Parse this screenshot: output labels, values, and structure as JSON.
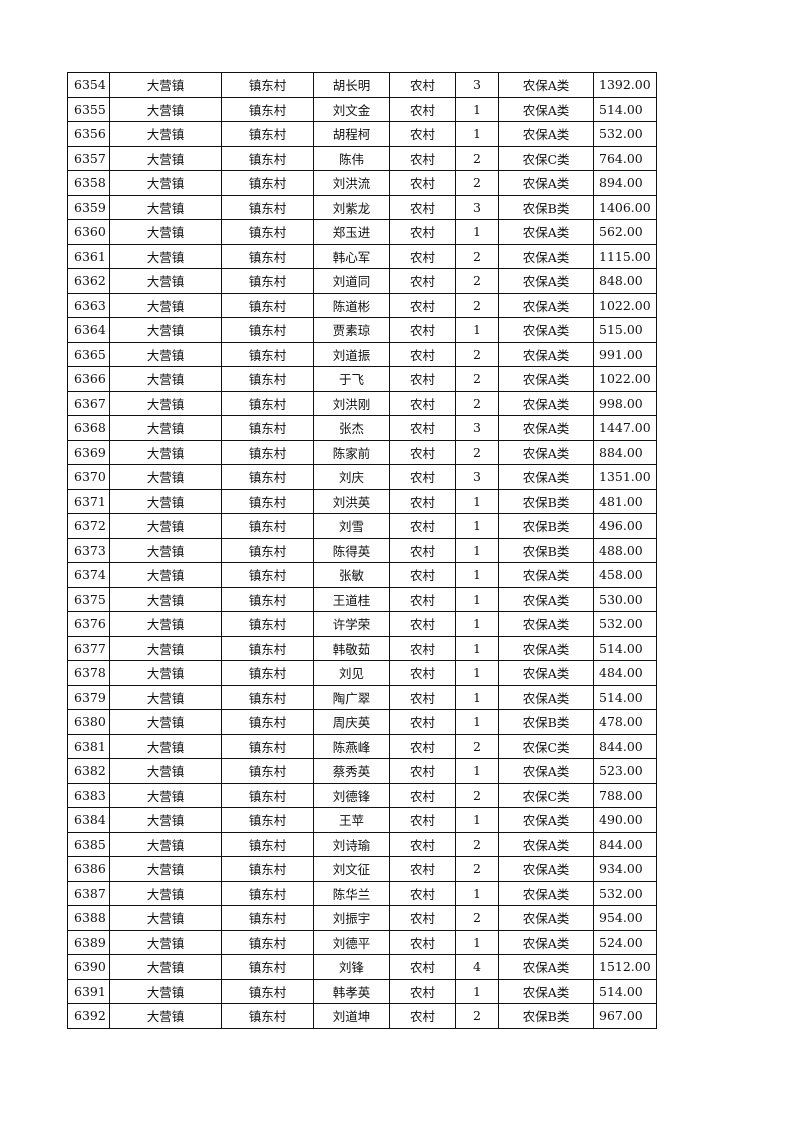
{
  "rows": [
    [
      "6354",
      "大营镇",
      "镇东村",
      "胡长明",
      "农村",
      "3",
      "农保A类",
      "1392.00"
    ],
    [
      "6355",
      "大营镇",
      "镇东村",
      "刘文金",
      "农村",
      "1",
      "农保A类",
      "514.00"
    ],
    [
      "6356",
      "大营镇",
      "镇东村",
      "胡程柯",
      "农村",
      "1",
      "农保A类",
      "532.00"
    ],
    [
      "6357",
      "大营镇",
      "镇东村",
      "陈伟",
      "农村",
      "2",
      "农保C类",
      "764.00"
    ],
    [
      "6358",
      "大营镇",
      "镇东村",
      "刘洪流",
      "农村",
      "2",
      "农保A类",
      "894.00"
    ],
    [
      "6359",
      "大营镇",
      "镇东村",
      "刘紫龙",
      "农村",
      "3",
      "农保B类",
      "1406.00"
    ],
    [
      "6360",
      "大营镇",
      "镇东村",
      "郑玉进",
      "农村",
      "1",
      "农保A类",
      "562.00"
    ],
    [
      "6361",
      "大营镇",
      "镇东村",
      "韩心军",
      "农村",
      "2",
      "农保A类",
      "1115.00"
    ],
    [
      "6362",
      "大营镇",
      "镇东村",
      "刘道同",
      "农村",
      "2",
      "农保A类",
      "848.00"
    ],
    [
      "6363",
      "大营镇",
      "镇东村",
      "陈道彬",
      "农村",
      "2",
      "农保A类",
      "1022.00"
    ],
    [
      "6364",
      "大营镇",
      "镇东村",
      "贾素琼",
      "农村",
      "1",
      "农保A类",
      "515.00"
    ],
    [
      "6365",
      "大营镇",
      "镇东村",
      "刘道振",
      "农村",
      "2",
      "农保A类",
      "991.00"
    ],
    [
      "6366",
      "大营镇",
      "镇东村",
      "于飞",
      "农村",
      "2",
      "农保A类",
      "1022.00"
    ],
    [
      "6367",
      "大营镇",
      "镇东村",
      "刘洪刚",
      "农村",
      "2",
      "农保A类",
      "998.00"
    ],
    [
      "6368",
      "大营镇",
      "镇东村",
      "张杰",
      "农村",
      "3",
      "农保A类",
      "1447.00"
    ],
    [
      "6369",
      "大营镇",
      "镇东村",
      "陈家前",
      "农村",
      "2",
      "农保A类",
      "884.00"
    ],
    [
      "6370",
      "大营镇",
      "镇东村",
      "刘庆",
      "农村",
      "3",
      "农保A类",
      "1351.00"
    ],
    [
      "6371",
      "大营镇",
      "镇东村",
      "刘洪英",
      "农村",
      "1",
      "农保B类",
      "481.00"
    ],
    [
      "6372",
      "大营镇",
      "镇东村",
      "刘雪",
      "农村",
      "1",
      "农保B类",
      "496.00"
    ],
    [
      "6373",
      "大营镇",
      "镇东村",
      "陈得英",
      "农村",
      "1",
      "农保B类",
      "488.00"
    ],
    [
      "6374",
      "大营镇",
      "镇东村",
      "张敏",
      "农村",
      "1",
      "农保A类",
      "458.00"
    ],
    [
      "6375",
      "大营镇",
      "镇东村",
      "王道桂",
      "农村",
      "1",
      "农保A类",
      "530.00"
    ],
    [
      "6376",
      "大营镇",
      "镇东村",
      "许学荣",
      "农村",
      "1",
      "农保A类",
      "532.00"
    ],
    [
      "6377",
      "大营镇",
      "镇东村",
      "韩敬茹",
      "农村",
      "1",
      "农保A类",
      "514.00"
    ],
    [
      "6378",
      "大营镇",
      "镇东村",
      "刘见",
      "农村",
      "1",
      "农保A类",
      "484.00"
    ],
    [
      "6379",
      "大营镇",
      "镇东村",
      "陶广翠",
      "农村",
      "1",
      "农保A类",
      "514.00"
    ],
    [
      "6380",
      "大营镇",
      "镇东村",
      "周庆英",
      "农村",
      "1",
      "农保B类",
      "478.00"
    ],
    [
      "6381",
      "大营镇",
      "镇东村",
      "陈燕峰",
      "农村",
      "2",
      "农保C类",
      "844.00"
    ],
    [
      "6382",
      "大营镇",
      "镇东村",
      "蔡秀英",
      "农村",
      "1",
      "农保A类",
      "523.00"
    ],
    [
      "6383",
      "大营镇",
      "镇东村",
      "刘德锋",
      "农村",
      "2",
      "农保C类",
      "788.00"
    ],
    [
      "6384",
      "大营镇",
      "镇东村",
      "王苹",
      "农村",
      "1",
      "农保A类",
      "490.00"
    ],
    [
      "6385",
      "大营镇",
      "镇东村",
      "刘诗瑜",
      "农村",
      "2",
      "农保A类",
      "844.00"
    ],
    [
      "6386",
      "大营镇",
      "镇东村",
      "刘文征",
      "农村",
      "2",
      "农保A类",
      "934.00"
    ],
    [
      "6387",
      "大营镇",
      "镇东村",
      "陈华兰",
      "农村",
      "1",
      "农保A类",
      "532.00"
    ],
    [
      "6388",
      "大营镇",
      "镇东村",
      "刘振宇",
      "农村",
      "2",
      "农保A类",
      "954.00"
    ],
    [
      "6389",
      "大营镇",
      "镇东村",
      "刘德平",
      "农村",
      "1",
      "农保A类",
      "524.00"
    ],
    [
      "6390",
      "大营镇",
      "镇东村",
      "刘锋",
      "农村",
      "4",
      "农保A类",
      "1512.00"
    ],
    [
      "6391",
      "大营镇",
      "镇东村",
      "韩孝英",
      "农村",
      "1",
      "农保A类",
      "514.00"
    ],
    [
      "6392",
      "大营镇",
      "镇东村",
      "刘道坤",
      "农村",
      "2",
      "农保B类",
      "967.00"
    ]
  ]
}
